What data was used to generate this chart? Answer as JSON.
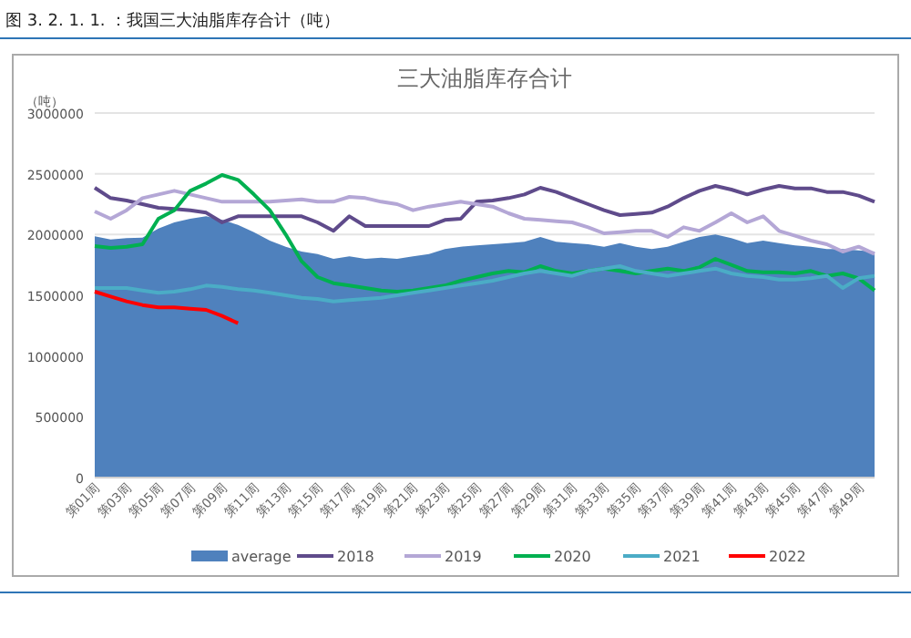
{
  "chart_data": {
    "type": "line",
    "title": "三大油脂库存合计",
    "ylabel": "（吨）",
    "annotations": [
      "图 3. 2. 1. 1. ：我国三大油脂库存合计（吨）"
    ],
    "categories": [
      "第01周",
      null,
      "第03周",
      null,
      "第05周",
      null,
      "第07周",
      null,
      "第09周",
      null,
      "第11周",
      null,
      "第13周",
      null,
      "第15周",
      null,
      "第17周",
      null,
      "第19周",
      null,
      "第21周",
      null,
      "第23周",
      null,
      "第25周",
      null,
      "第27周",
      null,
      "第29周",
      null,
      "第31周",
      null,
      "第33周",
      null,
      "第35周",
      null,
      "第37周",
      null,
      "第39周",
      null,
      "第41周",
      null,
      "第43周",
      null,
      "第45周",
      null,
      "第47周",
      null,
      "第49周",
      null
    ],
    "ylim": [
      0,
      3000000
    ],
    "yticks": [
      0,
      500000,
      1000000,
      1500000,
      2000000,
      2500000,
      3000000
    ],
    "grid": "y",
    "legend": "bottom",
    "series": [
      {
        "name": "average",
        "type": "area",
        "color": "#4f81bd",
        "values": [
          1985000,
          1960000,
          1970000,
          1975000,
          2050000,
          2100000,
          2130000,
          2150000,
          2120000,
          2080000,
          2020000,
          1950000,
          1900000,
          1860000,
          1840000,
          1800000,
          1820000,
          1800000,
          1810000,
          1800000,
          1820000,
          1840000,
          1880000,
          1900000,
          1910000,
          1920000,
          1930000,
          1940000,
          1980000,
          1940000,
          1930000,
          1920000,
          1900000,
          1930000,
          1900000,
          1880000,
          1900000,
          1940000,
          1980000,
          2000000,
          1970000,
          1930000,
          1950000,
          1930000,
          1910000,
          1900000,
          1880000,
          1880000,
          1870000,
          1860000
        ]
      },
      {
        "name": "2018",
        "color": "#5f4b8b",
        "values": [
          2385000,
          2300000,
          2280000,
          2250000,
          2220000,
          2210000,
          2200000,
          2180000,
          2100000,
          2150000,
          2150000,
          2150000,
          2150000,
          2150000,
          2100000,
          2030000,
          2150000,
          2070000,
          2070000,
          2070000,
          2070000,
          2070000,
          2120000,
          2130000,
          2270000,
          2280000,
          2300000,
          2330000,
          2385000,
          2350000,
          2300000,
          2250000,
          2200000,
          2160000,
          2170000,
          2180000,
          2230000,
          2300000,
          2360000,
          2400000,
          2370000,
          2330000,
          2370000,
          2400000,
          2380000,
          2380000,
          2350000,
          2350000,
          2320000,
          2270000
        ]
      },
      {
        "name": "2019",
        "color": "#b4a7d6",
        "values": [
          2190000,
          2130000,
          2200000,
          2300000,
          2330000,
          2360000,
          2330000,
          2300000,
          2270000,
          2270000,
          2270000,
          2270000,
          2280000,
          2290000,
          2270000,
          2270000,
          2310000,
          2300000,
          2270000,
          2250000,
          2200000,
          2230000,
          2250000,
          2270000,
          2250000,
          2230000,
          2175000,
          2130000,
          2120000,
          2110000,
          2100000,
          2060000,
          2010000,
          2020000,
          2030000,
          2030000,
          1980000,
          2060000,
          2030000,
          2100000,
          2175000,
          2100000,
          2150000,
          2030000,
          1990000,
          1950000,
          1920000,
          1860000,
          1900000,
          1840000
        ]
      },
      {
        "name": "2020",
        "color": "#00b050",
        "values": [
          1905000,
          1890000,
          1900000,
          1920000,
          2130000,
          2200000,
          2360000,
          2420000,
          2490000,
          2450000,
          2330000,
          2200000,
          2000000,
          1780000,
          1650000,
          1600000,
          1580000,
          1560000,
          1540000,
          1530000,
          1540000,
          1560000,
          1580000,
          1620000,
          1650000,
          1680000,
          1700000,
          1690000,
          1740000,
          1700000,
          1680000,
          1700000,
          1720000,
          1700000,
          1680000,
          1700000,
          1720000,
          1700000,
          1730000,
          1800000,
          1750000,
          1700000,
          1690000,
          1690000,
          1680000,
          1700000,
          1660000,
          1680000,
          1640000,
          1540000
        ]
      },
      {
        "name": "2021",
        "color": "#4bacc6",
        "values": [
          1560000,
          1560000,
          1560000,
          1540000,
          1520000,
          1530000,
          1550000,
          1580000,
          1570000,
          1550000,
          1540000,
          1520000,
          1500000,
          1480000,
          1470000,
          1450000,
          1460000,
          1470000,
          1480000,
          1500000,
          1520000,
          1540000,
          1560000,
          1580000,
          1600000,
          1620000,
          1650000,
          1680000,
          1700000,
          1680000,
          1660000,
          1700000,
          1720000,
          1740000,
          1700000,
          1680000,
          1660000,
          1680000,
          1700000,
          1720000,
          1680000,
          1660000,
          1650000,
          1630000,
          1630000,
          1640000,
          1660000,
          1560000,
          1640000,
          1660000
        ]
      },
      {
        "name": "2022",
        "color": "#ff0000",
        "values": [
          1530000,
          1490000,
          1450000,
          1420000,
          1400000,
          1400000,
          1390000,
          1380000,
          1330000,
          1270000,
          null,
          null,
          null,
          null,
          null,
          null,
          null,
          null,
          null,
          null,
          null,
          null,
          null,
          null,
          null,
          null,
          null,
          null,
          null,
          null,
          null,
          null,
          null,
          null,
          null,
          null,
          null,
          null,
          null,
          null,
          null,
          null,
          null,
          null,
          null,
          null,
          null,
          null,
          null,
          null
        ]
      }
    ]
  }
}
